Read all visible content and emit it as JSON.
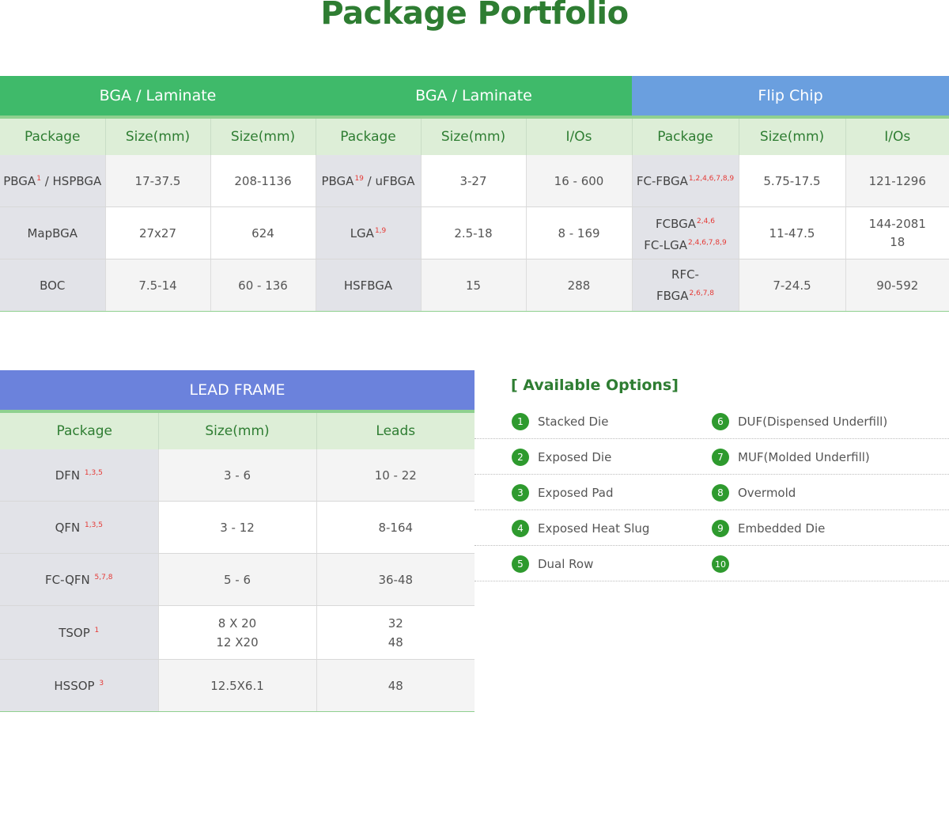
{
  "title": "Package Portfolio",
  "colors": {
    "green_header": "#3fba6a",
    "blue_header": "#6a9fdf",
    "lead_frame_header": "#6b82dc",
    "title_green": "#2e7d32"
  },
  "top_table": {
    "groups": [
      "BGA / Laminate",
      "BGA / Laminate",
      "Flip Chip"
    ],
    "headers": [
      "Package",
      "Size(mm)",
      "Size(mm)",
      "Package",
      "Size(mm)",
      "I/Os",
      "Package",
      "Size(mm)",
      "I/Os"
    ],
    "rows": [
      {
        "c1": {
          "name": "PBGA",
          "sup": "1",
          "suffix": " / HSPBGA"
        },
        "c2": "17-37.5",
        "c3": "208-1136",
        "c4": {
          "name": "PBGA",
          "sup": "19",
          "suffix": " / uFBGA"
        },
        "c5": "3-27",
        "c6": "16 - 600",
        "c7": {
          "name": "FC-FBGA",
          "sup": "1,2,4,6,7,8,9"
        },
        "c8": "5.75-17.5",
        "c9": "121-1296"
      },
      {
        "c1": {
          "name": "MapBGA"
        },
        "c2": "27x27",
        "c3": "624",
        "c4": {
          "name": "LGA",
          "sup": "1,9"
        },
        "c5": "2.5-18",
        "c6": "8 - 169",
        "c7a": {
          "name": "FCBGA",
          "sup": "2,4,6"
        },
        "c7b": {
          "name": "FC-LGA",
          "sup": "2,4,6,7,8,9"
        },
        "c8": "11-47.5",
        "c9a": "144-2081",
        "c9b": "18"
      },
      {
        "c1": {
          "name": "BOC"
        },
        "c2": "7.5-14",
        "c3": "60 - 136",
        "c4": {
          "name": "HSFBGA"
        },
        "c5": "15",
        "c6": "288",
        "c7a": {
          "name": "RFC-"
        },
        "c7b": {
          "name": "FBGA",
          "sup": "2,6,7,8"
        },
        "c8": "7-24.5",
        "c9": "90-592"
      }
    ]
  },
  "lead_frame": {
    "group": "LEAD FRAME",
    "headers": [
      "Package",
      "Size(mm)",
      "Leads"
    ],
    "rows": [
      {
        "name": "DFN",
        "sup": "1,3,5",
        "size": "3 - 6",
        "leads": "10 - 22"
      },
      {
        "name": "QFN",
        "sup": "1,3,5",
        "size": "3 - 12",
        "leads": "8-164"
      },
      {
        "name": "FC-QFN",
        "sup": "5,7,8",
        "size": "5 - 6",
        "leads": "36-48"
      },
      {
        "name": "TSOP",
        "sup": "1",
        "size_a": "8 X 20",
        "size_b": "12 X20",
        "leads_a": "32",
        "leads_b": "48"
      },
      {
        "name": "HSSOP",
        "sup": "3",
        "size": "12.5X6.1",
        "leads": "48"
      }
    ]
  },
  "options": {
    "title": "[ Available Options]",
    "items": [
      {
        "num": "1",
        "label": "Stacked Die"
      },
      {
        "num": "6",
        "label": "DUF(Dispensed Underfill)"
      },
      {
        "num": "2",
        "label": "Exposed Die"
      },
      {
        "num": "7",
        "label": "MUF(Molded Underfill)"
      },
      {
        "num": "3",
        "label": "Exposed Pad"
      },
      {
        "num": "8",
        "label": "Overmold"
      },
      {
        "num": "4",
        "label": "Exposed Heat Slug"
      },
      {
        "num": "9",
        "label": "Embedded Die"
      },
      {
        "num": "5",
        "label": "Dual Row"
      },
      {
        "num": "10",
        "label": ""
      }
    ]
  }
}
